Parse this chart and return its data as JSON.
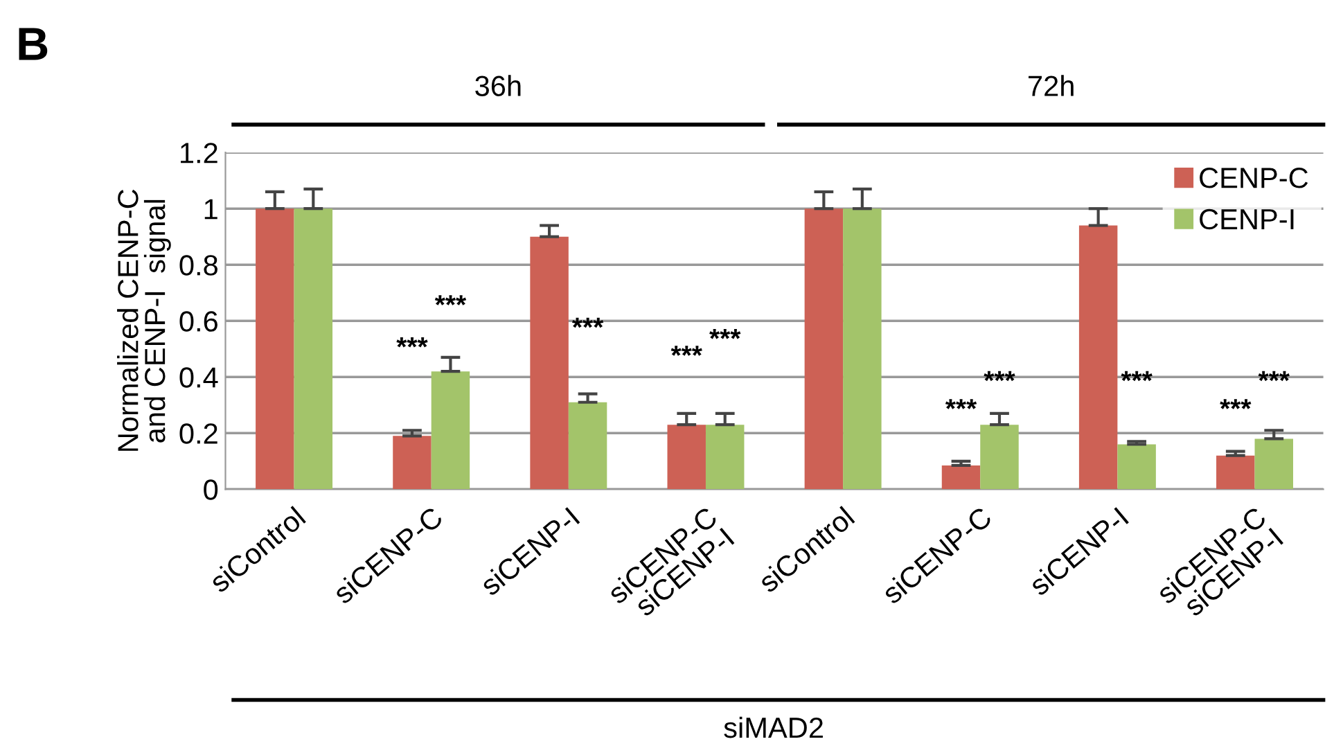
{
  "chart_data": {
    "type": "bar",
    "ylabel": "Normalized CENP-C\nand CENP-I  signal",
    "categories": [
      "siControl",
      "siCENP-C",
      "siCENP-I",
      "siCENP-C\nsiCENP-I",
      "siControl",
      "siCENP-C",
      "siCENP-I",
      "siCENP-C\nsiCENP-I"
    ],
    "series": [
      {
        "name": "CENP-C",
        "color": "#cd6155",
        "values": [
          1.0,
          0.19,
          0.9,
          0.23,
          1.0,
          0.085,
          0.94,
          0.12
        ],
        "errors": [
          0.06,
          0.02,
          0.04,
          0.04,
          0.06,
          0.015,
          0.06,
          0.015
        ]
      },
      {
        "name": "CENP-I",
        "color": "#a3c46a",
        "values": [
          1.0,
          0.42,
          0.31,
          0.23,
          1.0,
          0.23,
          0.16,
          0.18
        ],
        "errors": [
          0.07,
          0.05,
          0.03,
          0.04,
          0.07,
          0.04,
          0.01,
          0.03
        ]
      }
    ],
    "ylim": [
      0,
      1.2
    ],
    "yticks": [
      0,
      0.2,
      0.4,
      0.6,
      0.8,
      1,
      1.2
    ],
    "grid": "y",
    "legend": "top right",
    "annotations": [
      "B",
      "36h",
      "72h",
      "siMAD2",
      "***",
      "***",
      "***",
      "***",
      "***",
      "***",
      "***",
      "***",
      "***",
      "***"
    ]
  }
}
